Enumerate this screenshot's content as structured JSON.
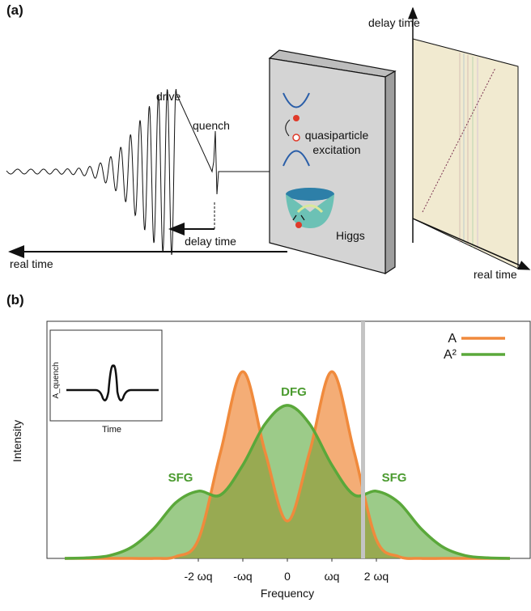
{
  "panel_a": {
    "label": "(a)",
    "drive": "drive",
    "quench": "quench",
    "delay_time": "delay time",
    "real_time": "real time",
    "quasiparticle": [
      "quasiparticle",
      "excitation"
    ],
    "higgs": "Higgs",
    "map_y_label": "delay time",
    "map_x_label": "real time"
  },
  "panel_b": {
    "label": "(b)",
    "inset": {
      "y_label": "A_quench",
      "x_label": "Time"
    }
  },
  "chart_data": {
    "type": "area",
    "x_label": "Frequency",
    "y_label": "Intensity",
    "x": [
      -5,
      -4.5,
      -4,
      -3.5,
      -3,
      -2.5,
      -2,
      -1.5,
      -1,
      -0.5,
      0,
      0.5,
      1,
      1.5,
      2,
      2.5,
      3,
      3.5,
      4,
      4.5,
      5
    ],
    "series": [
      {
        "name": "A",
        "color": "#f08a3c",
        "values": [
          0,
          0,
          0,
          0,
          0,
          0.01,
          0.1,
          0.57,
          1.0,
          0.57,
          0.2,
          0.57,
          1.0,
          0.57,
          0.1,
          0.01,
          0,
          0,
          0,
          0,
          0
        ]
      },
      {
        "name": "A²",
        "color": "#5aa83a",
        "values": [
          0,
          0.003,
          0.015,
          0.06,
          0.16,
          0.3,
          0.36,
          0.34,
          0.5,
          0.72,
          0.82,
          0.72,
          0.5,
          0.34,
          0.36,
          0.3,
          0.16,
          0.06,
          0.015,
          0.003,
          0
        ]
      }
    ],
    "annotations": [
      {
        "text": "DFG",
        "x": 0,
        "y": 0.82
      },
      {
        "text": "SFG",
        "x": -2,
        "y": 0.36
      },
      {
        "text": "SFG",
        "x": 2,
        "y": 0.36
      }
    ],
    "annotation_color": "#4a9a2e",
    "marker_x": 1.7,
    "xlim": [
      -5.4,
      5.4
    ],
    "ylim": [
      0,
      1.27
    ],
    "xticks": [
      {
        "value": -2,
        "label": "-2 ωq"
      },
      {
        "value": -1,
        "label": "-ωq"
      },
      0,
      {
        "value": 1,
        "label": "ωq"
      },
      {
        "value": 2,
        "label": "2 ωq"
      }
    ],
    "legend": "upper right"
  }
}
